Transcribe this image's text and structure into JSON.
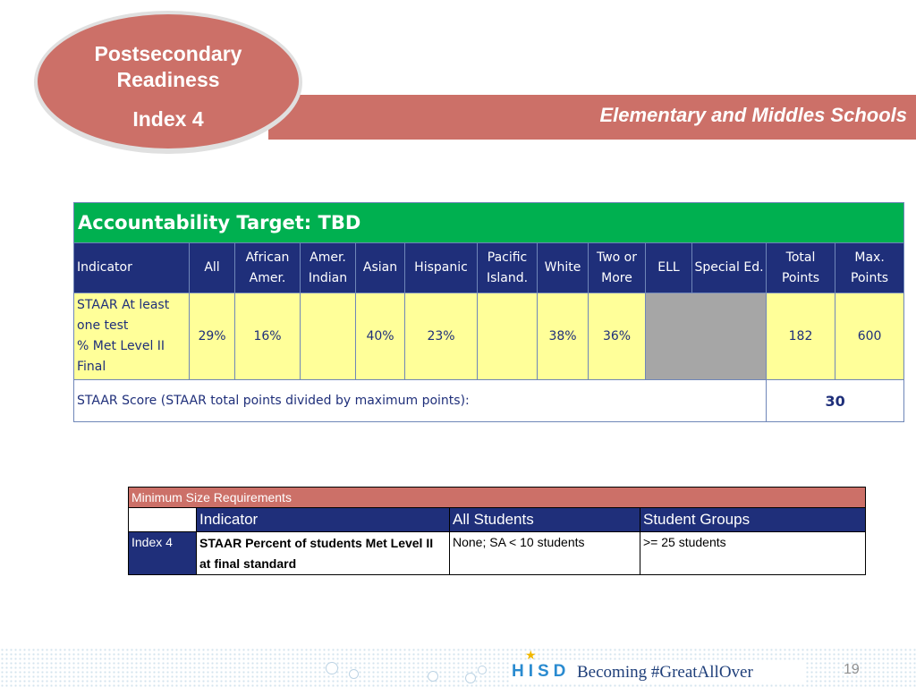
{
  "header": {
    "badge_line1": "Postsecondary",
    "badge_line2": "Readiness",
    "badge_line3": "Index 4",
    "subtitle": "Elementary and Middles Schools"
  },
  "accountability": {
    "target_label": "Accountability Target:  TBD",
    "columns": [
      "Indicator",
      "All",
      "African Amer.",
      "Amer. Indian",
      "Asian",
      "Hispanic",
      "Pacific Island.",
      "White",
      "Two or More",
      "ELL",
      "Special Ed.",
      "Total Points",
      "Max. Points"
    ],
    "row_indicator_lines": [
      "STAAR At least one test",
      "% Met Level II Final"
    ],
    "row_values": {
      "all": "29%",
      "african_amer": "16%",
      "amer_indian": "",
      "asian": "40%",
      "hispanic": "23%",
      "pacific_island": "",
      "white": "38%",
      "two_or_more": "36%",
      "total_points": "182",
      "max_points": "600"
    },
    "score_label": "STAAR Score (STAAR total points divided by maximum points):",
    "score_value": "30"
  },
  "min_size": {
    "title": "Minimum Size Requirements",
    "headers": [
      "Indicator",
      "All Students",
      "Student Groups"
    ],
    "row": {
      "index": "Index 4",
      "indicator": "STAAR Percent of students Met Level II at final standard",
      "all_students": "None; SA  < 10 students",
      "student_groups": ">= 25 students"
    }
  },
  "footer": {
    "brand": "HISD",
    "tagline": "Becoming #GreatAllOver",
    "page_number": "19"
  },
  "colors": {
    "salmon": "#cc7068",
    "green": "#00b050",
    "navy": "#1f2f7a",
    "yellow": "#ffff99",
    "grey": "#a6a6a6"
  }
}
